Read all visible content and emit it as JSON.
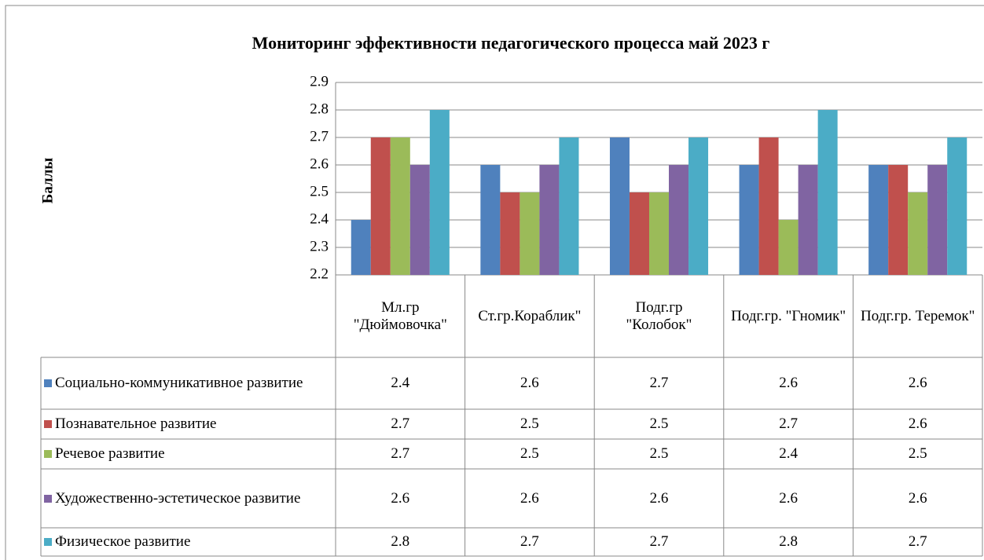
{
  "chart_data": {
    "type": "bar",
    "title": "Мониторинг эффективности педагогического процесса  май 2023 г",
    "y_label": "Баллы",
    "categories": [
      "Мл.гр \"Дюймовочка\"",
      "Ст.гр.Кораблик\"",
      "Подг.гр \"Колобок\"",
      "Подг.гр. \"Гномик\"",
      "Подг.гр. Теремок\""
    ],
    "series": [
      {
        "name": "Социально-коммуникативное развитие",
        "color": "#4f81bd",
        "values": [
          2.4,
          2.6,
          2.7,
          2.6,
          2.6
        ]
      },
      {
        "name": "Познавательное развитие",
        "color": "#c0504d",
        "values": [
          2.7,
          2.5,
          2.5,
          2.7,
          2.6
        ]
      },
      {
        "name": "Речевое развитие",
        "color": "#9bbb59",
        "values": [
          2.7,
          2.5,
          2.5,
          2.4,
          2.5
        ]
      },
      {
        "name": "Художественно-эстетическое развитие",
        "color": "#8064a2",
        "values": [
          2.6,
          2.6,
          2.6,
          2.6,
          2.6
        ]
      },
      {
        "name": "Физическое развитие",
        "color": "#4bacc6",
        "values": [
          2.8,
          2.7,
          2.7,
          2.8,
          2.7
        ]
      }
    ],
    "ylim": [
      2.2,
      2.9
    ],
    "yticks": [
      2.2,
      2.3,
      2.4,
      2.5,
      2.6,
      2.7,
      2.8,
      2.9
    ],
    "grid": true
  }
}
